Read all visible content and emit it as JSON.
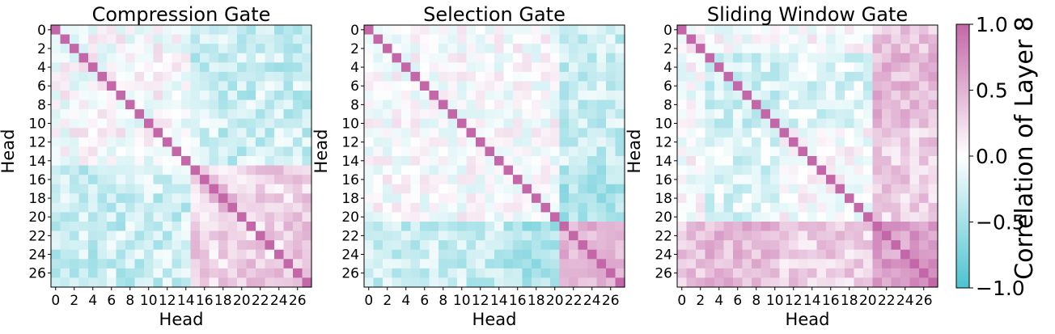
{
  "figure": {
    "colormap": {
      "low": "#4cc3d1",
      "mid": "#ffffff",
      "high": "#c467a8"
    }
  },
  "colorbar": {
    "label": "Correlation of Layer 8",
    "range": [
      -1.0,
      1.0
    ],
    "ticks": [
      {
        "value": 1.0,
        "label": "1.0"
      },
      {
        "value": 0.5,
        "label": "0.5"
      },
      {
        "value": 0.0,
        "label": "0.0"
      },
      {
        "value": -0.5,
        "label": "−0.5"
      },
      {
        "value": -1.0,
        "label": "−1.0"
      }
    ]
  },
  "chart_data": [
    {
      "type": "heatmap",
      "title": "Compression Gate",
      "xlabel": "Head",
      "ylabel": "Head",
      "size": 28,
      "ticks": [
        0,
        2,
        4,
        6,
        8,
        10,
        12,
        14,
        16,
        18,
        20,
        22,
        24,
        26
      ],
      "vrange": [
        -1.0,
        1.0
      ],
      "blocks": [
        {
          "range": [
            15,
            27
          ],
          "value": 0.3
        },
        {
          "range": [
            7,
            7
          ],
          "value": -0.15
        },
        {
          "range": [
            6,
            6
          ],
          "value": 0.15
        }
      ],
      "cross": [
        {
          "a": [
            0,
            14
          ],
          "b": [
            15,
            27
          ],
          "value": -0.3
        }
      ],
      "noise": 0.25,
      "seed": 11
    },
    {
      "type": "heatmap",
      "title": "Selection Gate",
      "xlabel": "Head",
      "ylabel": "Head",
      "size": 28,
      "ticks": [
        0,
        2,
        4,
        6,
        8,
        10,
        12,
        14,
        16,
        18,
        20,
        22,
        24,
        26
      ],
      "vrange": [
        -1.0,
        1.0
      ],
      "blocks": [
        {
          "range": [
            21,
            27
          ],
          "value": 0.45
        },
        {
          "range": [
            6,
            6
          ],
          "value": 0.35
        }
      ],
      "cross": [
        {
          "a": [
            0,
            14
          ],
          "b": [
            21,
            27
          ],
          "value": -0.3
        },
        {
          "a": [
            15,
            20
          ],
          "b": [
            21,
            27
          ],
          "value": -0.45
        }
      ],
      "noise": 0.22,
      "seed": 23
    },
    {
      "type": "heatmap",
      "title": "Sliding Window Gate",
      "xlabel": "Head",
      "ylabel": "Head",
      "size": 28,
      "ticks": [
        0,
        2,
        4,
        6,
        8,
        10,
        12,
        14,
        16,
        18,
        20,
        22,
        24,
        26
      ],
      "vrange": [
        -1.0,
        1.0
      ],
      "blocks": [
        {
          "range": [
            21,
            27
          ],
          "value": 0.6
        },
        {
          "range": [
            3,
            10
          ],
          "value": -0.25
        }
      ],
      "cross": [
        {
          "a": [
            3,
            10
          ],
          "b": [
            21,
            27
          ],
          "value": 0.45
        },
        {
          "a": [
            0,
            2
          ],
          "b": [
            21,
            27
          ],
          "value": 0.35
        },
        {
          "a": [
            11,
            20
          ],
          "b": [
            21,
            27
          ],
          "value": 0.3
        },
        {
          "a": [
            3,
            10
          ],
          "b": [
            11,
            20
          ],
          "value": -0.2
        }
      ],
      "noise": 0.22,
      "seed": 37
    }
  ]
}
